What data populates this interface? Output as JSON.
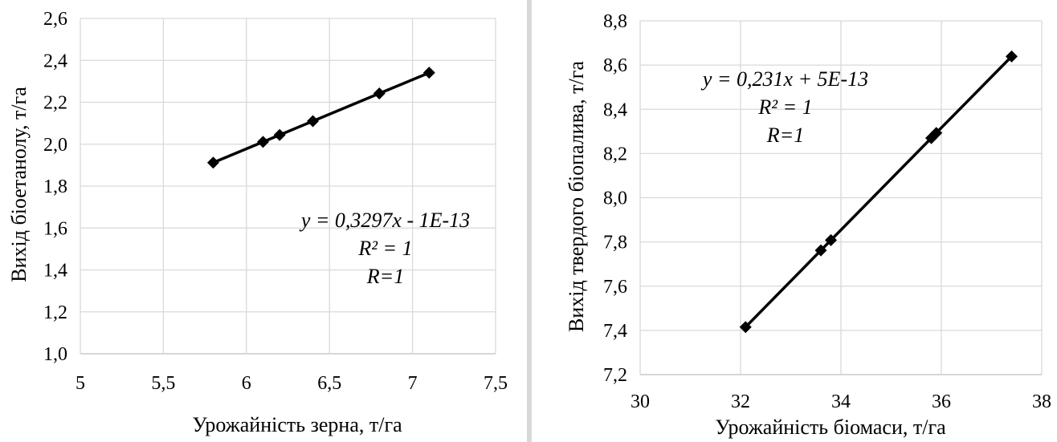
{
  "colors": {
    "series": "#000000",
    "grid": "#d9d9d9",
    "axis": "#bfbfbf",
    "divider": "#d9d9d9"
  },
  "chart_data": [
    {
      "type": "scatter",
      "xlabel": "Урожайність зерна, т/га",
      "ylabel": "Вихід біоетанолу, т/га",
      "xlim": [
        5,
        7.5
      ],
      "ylim": [
        1.0,
        2.6
      ],
      "x_ticks": [
        "5",
        "5,5",
        "6",
        "6,5",
        "7",
        "7,5"
      ],
      "y_ticks": [
        "1,0",
        "1,2",
        "1,4",
        "1,6",
        "1,8",
        "2,0",
        "2,2",
        "2,4",
        "2,6"
      ],
      "grid": true,
      "marker": "diamond",
      "series": [
        {
          "x": [
            5.8,
            6.1,
            6.2,
            6.4,
            6.8,
            7.1
          ],
          "y": [
            1.912,
            2.011,
            2.044,
            2.11,
            2.242,
            2.341
          ]
        }
      ],
      "trendline": {
        "slope": 0.3297,
        "intercept": 0
      },
      "annotation": [
        "y = 0,3297x - 1E-13",
        "R² = 1",
        "R=1"
      ]
    },
    {
      "type": "scatter",
      "xlabel": "Урожайність біомаси, т/га",
      "ylabel": "Вихід твердого біопалива, т/га",
      "xlim": [
        30,
        38
      ],
      "ylim": [
        7.2,
        8.8
      ],
      "x_ticks": [
        "30",
        "32",
        "34",
        "36",
        "38"
      ],
      "y_ticks": [
        "7,2",
        "7,4",
        "7,6",
        "7,8",
        "8,0",
        "8,2",
        "8,4",
        "8,6",
        "8,8"
      ],
      "grid": true,
      "marker": "diamond",
      "series": [
        {
          "x": [
            32.1,
            33.6,
            33.8,
            35.8,
            35.9,
            37.4
          ],
          "y": [
            7.415,
            7.762,
            7.808,
            8.27,
            8.293,
            8.639
          ]
        }
      ],
      "trendline": {
        "slope": 0.231,
        "intercept": 0
      },
      "annotation": [
        "y = 0,231x + 5E-13",
        "R² = 1",
        "R=1"
      ]
    }
  ]
}
